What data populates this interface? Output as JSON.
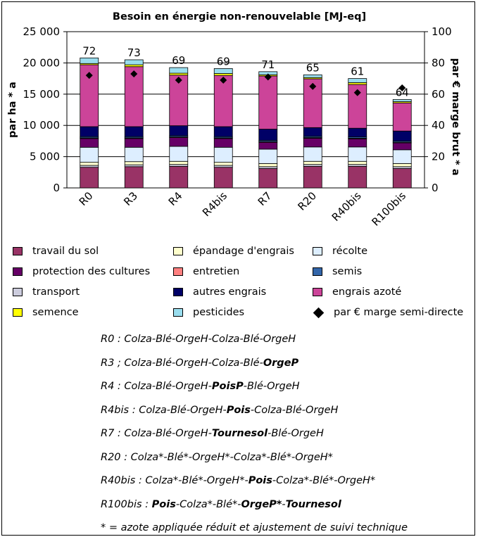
{
  "chart_data": {
    "type": "bar",
    "stacked": true,
    "title": "Besoin en énergie non-renouvelable [MJ-eq]",
    "ylabel": "par ha * a",
    "y2label": "par € marge brut * a",
    "ylim": [
      0,
      25000
    ],
    "y2lim": [
      0,
      100
    ],
    "yticks": [
      "0",
      "5 000",
      "10 000",
      "15 000",
      "20 000",
      "25 000"
    ],
    "y2ticks": [
      "0",
      "20",
      "40",
      "60",
      "80",
      "100"
    ],
    "grid": true,
    "categories": [
      "R0",
      "R3",
      "R4",
      "R4bis",
      "R7",
      "R20",
      "R40bis",
      "R100bis"
    ],
    "series": [
      {
        "name": "travail du sol",
        "color": "#993366",
        "values": [
          3300,
          3400,
          3450,
          3300,
          3100,
          3450,
          3450,
          3100
        ]
      },
      {
        "name": "transport",
        "color": "#ccccdd",
        "values": [
          300,
          300,
          300,
          300,
          300,
          300,
          300,
          300
        ]
      },
      {
        "name": "épandage d'engrais",
        "color": "#ffffcc",
        "values": [
          500,
          500,
          500,
          500,
          500,
          500,
          500,
          500
        ]
      },
      {
        "name": "récolte",
        "color": "#ddeeff",
        "values": [
          2400,
          2300,
          2400,
          2400,
          2300,
          2300,
          2300,
          2200
        ]
      },
      {
        "name": "protection des cultures",
        "color": "#660066",
        "values": [
          1400,
          1400,
          1400,
          1400,
          1100,
          1400,
          1300,
          1100
        ]
      },
      {
        "name": "entretien",
        "color": "#ff8080",
        "values": [
          100,
          100,
          100,
          100,
          100,
          100,
          100,
          100
        ]
      },
      {
        "name": "semis",
        "color": "#3366aa",
        "values": [
          200,
          200,
          200,
          200,
          200,
          200,
          200,
          200
        ]
      },
      {
        "name": "autres engrais",
        "color": "#000066",
        "values": [
          1600,
          1600,
          1600,
          1600,
          1800,
          1400,
          1400,
          1600
        ]
      },
      {
        "name": "engrais azoté",
        "color": "#cc4499",
        "values": [
          9900,
          9600,
          8100,
          8200,
          8500,
          7800,
          7000,
          4500
        ]
      },
      {
        "name": "semence",
        "color": "#ffff00",
        "values": [
          200,
          300,
          300,
          300,
          200,
          200,
          300,
          200
        ]
      },
      {
        "name": "pesticides",
        "color": "#99ddee",
        "values": [
          900,
          800,
          900,
          800,
          500,
          450,
          650,
          350
        ]
      }
    ],
    "marker_series": {
      "name": "par € marge semi-directe",
      "axis": "right",
      "values": [
        72,
        73,
        69,
        69,
        71,
        65,
        61,
        64
      ],
      "labels": [
        "72",
        "73",
        "69",
        "69",
        "71",
        "65",
        "61",
        "64"
      ]
    }
  },
  "legend": {
    "col1": [
      {
        "label": "travail du sol",
        "color": "#993366"
      },
      {
        "label": "protection des cultures",
        "color": "#660066"
      },
      {
        "label": "transport",
        "color": "#ccccdd"
      },
      {
        "label": "semence",
        "color": "#ffff00"
      }
    ],
    "col2": [
      {
        "label": "épandage d'engrais",
        "color": "#ffffcc"
      },
      {
        "label": "entretien",
        "color": "#ff8080"
      },
      {
        "label": "autres engrais",
        "color": "#000066"
      },
      {
        "label": "pesticides",
        "color": "#99ddee"
      }
    ],
    "col3": [
      {
        "label": "récolte",
        "color": "#ddeeff"
      },
      {
        "label": "semis",
        "color": "#3366aa"
      },
      {
        "label": "engrais azoté",
        "color": "#cc4499"
      },
      {
        "label": "par € marge semi-directe",
        "marker": "diamond"
      }
    ]
  },
  "notes": [
    [
      {
        "t": "R0 : Colza-Blé-OrgeH-Colza-Blé-OrgeH"
      }
    ],
    [
      {
        "t": "R3 ; Colza-Blé-OrgeH-Colza-Blé-"
      },
      {
        "t": "OrgeP",
        "b": true
      }
    ],
    [
      {
        "t": "R4 : Colza-Blé-OrgeH-"
      },
      {
        "t": "PoisP",
        "b": true
      },
      {
        "t": "-Blé-OrgeH"
      }
    ],
    [
      {
        "t": "R4bis : Colza-Blé-OrgeH-"
      },
      {
        "t": "Pois",
        "b": true
      },
      {
        "t": "-Colza-Blé-OrgeH"
      }
    ],
    [
      {
        "t": "R7 : Colza-Blé-OrgeH-"
      },
      {
        "t": "Tournesol",
        "b": true
      },
      {
        "t": "-Blé-OrgeH"
      }
    ],
    [
      {
        "t": "R20 : Colza*-Blé*-OrgeH*-Colza*-Blé*-OrgeH*"
      }
    ],
    [
      {
        "t": "R40bis : Colza*-Blé*-OrgeH*-"
      },
      {
        "t": "Pois",
        "b": true
      },
      {
        "t": "-Colza*-Blé*-OrgeH*"
      }
    ],
    [
      {
        "t": "R100bis : "
      },
      {
        "t": "Pois",
        "b": true
      },
      {
        "t": "-Colza*-Blé*-"
      },
      {
        "t": "OrgeP*",
        "b": true
      },
      {
        "t": "-"
      },
      {
        "t": "Tournesol",
        "b": true
      }
    ],
    [
      {
        "t": "* = azote appliquée réduit et ajustement de suivi technique"
      }
    ]
  ]
}
